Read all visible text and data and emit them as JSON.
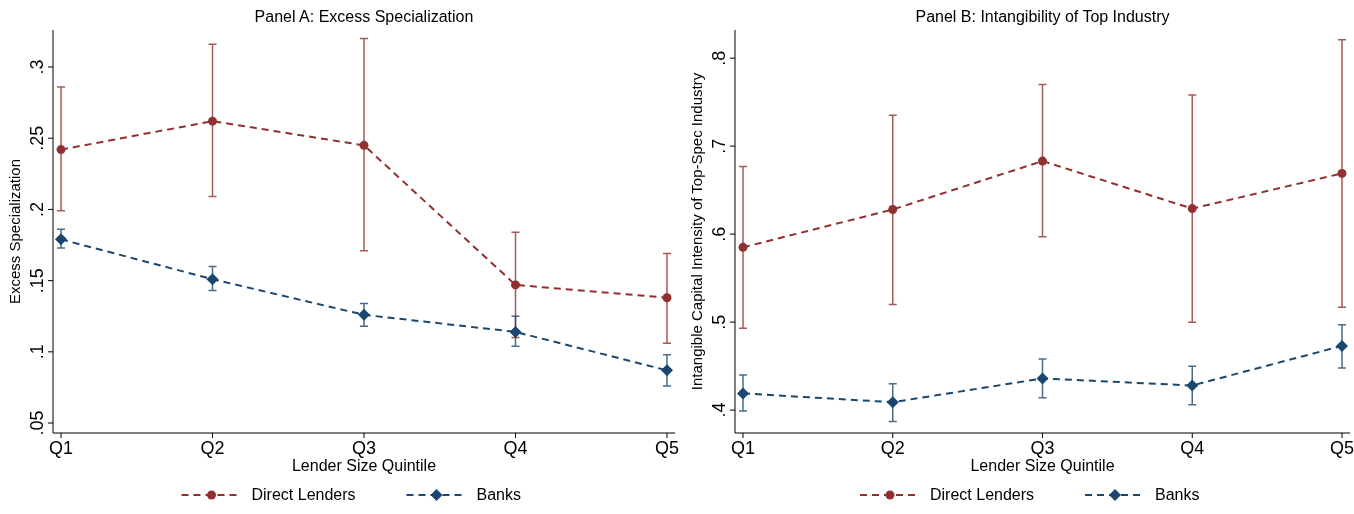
{
  "chart_data": [
    {
      "type": "line",
      "title": "Panel A: Excess Specialization",
      "xlabel": "Lender Size Quintile",
      "ylabel": "Excess Specialization",
      "categories": [
        "Q1",
        "Q2",
        "Q3",
        "Q4",
        "Q5"
      ],
      "series": [
        {
          "name": "Direct Lenders",
          "color": "#903030",
          "marker": "circle",
          "values": [
            0.242,
            0.262,
            0.245,
            0.147,
            0.138
          ],
          "errors": [
            [
              0.199,
              0.286
            ],
            [
              0.209,
              0.316
            ],
            [
              0.171,
              0.32
            ],
            [
              0.11,
              0.184
            ],
            [
              0.106,
              0.169
            ]
          ]
        },
        {
          "name": "Banks",
          "color": "#1a476f",
          "marker": "diamond",
          "values": [
            0.179,
            0.151,
            0.126,
            0.114,
            0.087
          ],
          "errors": [
            [
              0.173,
              0.186
            ],
            [
              0.143,
              0.16
            ],
            [
              0.118,
              0.134
            ],
            [
              0.104,
              0.125
            ],
            [
              0.076,
              0.098
            ]
          ]
        }
      ],
      "ylim": [
        0.043,
        0.326
      ],
      "yticks": [
        {
          "value": 0.05,
          "label": ".05"
        },
        {
          "value": 0.1,
          "label": ".1"
        },
        {
          "value": 0.15,
          "label": ".15"
        },
        {
          "value": 0.2,
          "label": ".2"
        },
        {
          "value": 0.25,
          "label": ".25"
        },
        {
          "value": 0.3,
          "label": ".3"
        }
      ],
      "line_style": "dashed",
      "grid": false,
      "legend": "bottom"
    },
    {
      "type": "line",
      "title": "Panel B: Intangibility of Top Industry",
      "xlabel": "Lender Size Quintile",
      "ylabel": "Intangible Capital Intensity of Top-Spec Industry",
      "categories": [
        "Q1",
        "Q2",
        "Q3",
        "Q4",
        "Q5"
      ],
      "series": [
        {
          "name": "Direct Lenders",
          "color": "#903030",
          "marker": "circle",
          "values": [
            0.585,
            0.628,
            0.683,
            0.629,
            0.669
          ],
          "errors": [
            [
              0.493,
              0.677
            ],
            [
              0.52,
              0.735
            ],
            [
              0.597,
              0.77
            ],
            [
              0.5,
              0.758
            ],
            [
              0.517,
              0.821
            ]
          ]
        },
        {
          "name": "Banks",
          "color": "#1a476f",
          "marker": "diamond",
          "values": [
            0.419,
            0.409,
            0.436,
            0.428,
            0.473
          ],
          "errors": [
            [
              0.399,
              0.44
            ],
            [
              0.387,
              0.43
            ],
            [
              0.414,
              0.458
            ],
            [
              0.406,
              0.45
            ],
            [
              0.448,
              0.497
            ]
          ]
        }
      ],
      "ylim": [
        0.374,
        0.832
      ],
      "yticks": [
        {
          "value": 0.4,
          "label": ".4"
        },
        {
          "value": 0.5,
          "label": ".5"
        },
        {
          "value": 0.6,
          "label": ".6"
        },
        {
          "value": 0.7,
          "label": ".7"
        },
        {
          "value": 0.8,
          "label": ".8"
        }
      ],
      "line_style": "dashed",
      "grid": false,
      "legend": "bottom"
    }
  ]
}
